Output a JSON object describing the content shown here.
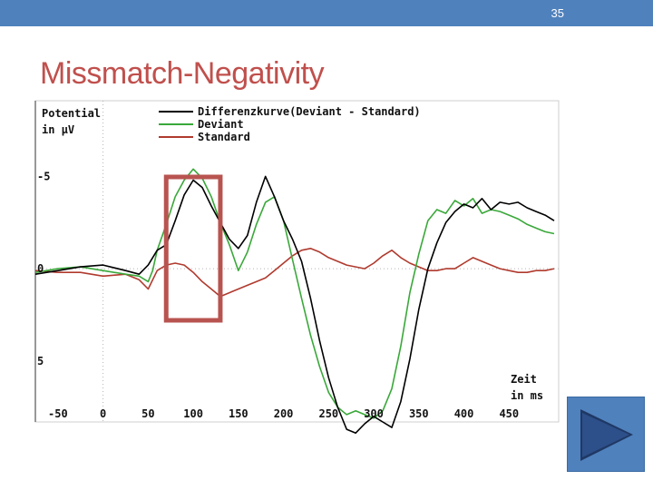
{
  "slide": {
    "number": "35",
    "title": "Missmatch-Negativity"
  },
  "colors": {
    "accent": "#4f81bd",
    "title": "#c0504d",
    "diff": "#000000",
    "deviant": "#3aa83a",
    "standard": "#b03a2e",
    "highlight": "#b85450"
  },
  "nav": {
    "next_icon": "play-arrow-icon"
  },
  "chart_data": {
    "type": "line",
    "ylabel": [
      "Potential",
      "in µV"
    ],
    "xlabel": [
      "Zeit",
      "in ms"
    ],
    "xlim": [
      -75,
      505
    ],
    "ylim": [
      8.3,
      -9.1
    ],
    "xticks": [
      -50,
      0,
      50,
      100,
      150,
      200,
      250,
      300,
      350,
      400,
      450
    ],
    "xtick_labels": [
      "-50",
      "0",
      "50",
      "100",
      "150",
      "200",
      "250",
      "300",
      "350",
      "400",
      "450"
    ],
    "yticks": [
      -5,
      0,
      5
    ],
    "ytick_labels": [
      "-5",
      "0",
      "5"
    ],
    "legend": [
      "Differenzkurve(Deviant - Standard)",
      "Deviant",
      "Standard"
    ],
    "highlight_window_ms": [
      70,
      130
    ],
    "series": [
      {
        "name": "Differenzkurve(Deviant - Standard)",
        "color": "#000000",
        "x": [
          -75,
          -50,
          -25,
          0,
          25,
          40,
          50,
          60,
          70,
          80,
          90,
          100,
          110,
          120,
          130,
          140,
          150,
          160,
          170,
          180,
          190,
          200,
          210,
          220,
          230,
          240,
          250,
          260,
          270,
          280,
          290,
          300,
          310,
          320,
          330,
          340,
          350,
          360,
          370,
          380,
          390,
          400,
          410,
          420,
          430,
          440,
          450,
          460,
          470,
          480,
          490,
          500
        ],
        "y": [
          0.3,
          0.1,
          -0.1,
          -0.2,
          0.1,
          0.3,
          -0.2,
          -1.0,
          -1.3,
          -2.6,
          -4.0,
          -4.8,
          -4.4,
          -3.4,
          -2.5,
          -1.6,
          -1.1,
          -1.8,
          -3.6,
          -5.0,
          -3.9,
          -2.6,
          -1.6,
          -0.4,
          1.6,
          3.9,
          5.9,
          7.5,
          8.7,
          8.9,
          8.4,
          8.0,
          8.3,
          8.6,
          7.2,
          4.9,
          2.2,
          0.0,
          -1.4,
          -2.5,
          -3.1,
          -3.5,
          -3.3,
          -3.8,
          -3.2,
          -3.6,
          -3.5,
          -3.6,
          -3.3,
          -3.1,
          -2.9,
          -2.6
        ]
      },
      {
        "name": "Deviant",
        "color": "#3aa83a",
        "x": [
          -75,
          -50,
          -25,
          0,
          25,
          40,
          50,
          55,
          60,
          70,
          80,
          90,
          100,
          110,
          120,
          130,
          140,
          150,
          160,
          170,
          180,
          190,
          200,
          210,
          220,
          230,
          240,
          250,
          260,
          270,
          280,
          290,
          300,
          310,
          320,
          330,
          340,
          350,
          360,
          370,
          380,
          390,
          400,
          410,
          420,
          430,
          440,
          450,
          460,
          470,
          480,
          490,
          500
        ],
        "y": [
          0.2,
          0.0,
          -0.1,
          0.1,
          0.3,
          0.4,
          0.7,
          0.1,
          -1.0,
          -2.4,
          -3.9,
          -4.8,
          -5.4,
          -4.9,
          -3.9,
          -2.5,
          -1.3,
          0.1,
          -0.9,
          -2.4,
          -3.6,
          -3.9,
          -2.6,
          -0.5,
          1.6,
          3.6,
          5.3,
          6.7,
          7.5,
          7.9,
          7.7,
          7.9,
          8.1,
          7.7,
          6.5,
          4.2,
          1.3,
          -0.8,
          -2.6,
          -3.2,
          -3.0,
          -3.7,
          -3.4,
          -3.8,
          -3.0,
          -3.2,
          -3.1,
          -2.9,
          -2.7,
          -2.4,
          -2.2,
          -2.0,
          -1.9
        ]
      },
      {
        "name": "Standard",
        "color": "#b03a2e",
        "x": [
          -75,
          -50,
          -25,
          0,
          25,
          40,
          50,
          60,
          70,
          80,
          90,
          100,
          110,
          120,
          130,
          140,
          150,
          160,
          170,
          180,
          190,
          200,
          210,
          220,
          230,
          240,
          250,
          260,
          270,
          280,
          290,
          300,
          310,
          320,
          330,
          340,
          350,
          360,
          370,
          380,
          390,
          400,
          410,
          420,
          430,
          440,
          450,
          460,
          470,
          480,
          490,
          500
        ],
        "y": [
          0.1,
          0.2,
          0.2,
          0.4,
          0.3,
          0.6,
          1.1,
          0.1,
          -0.2,
          -0.3,
          -0.2,
          0.2,
          0.7,
          1.1,
          1.5,
          1.3,
          1.1,
          0.9,
          0.7,
          0.5,
          0.1,
          -0.3,
          -0.7,
          -1.0,
          -1.1,
          -0.9,
          -0.6,
          -0.4,
          -0.2,
          -0.1,
          0.0,
          -0.3,
          -0.7,
          -1.0,
          -0.6,
          -0.3,
          -0.1,
          0.1,
          0.1,
          0.0,
          0.0,
          -0.3,
          -0.6,
          -0.4,
          -0.2,
          0.0,
          0.1,
          0.2,
          0.2,
          0.1,
          0.1,
          0.0
        ]
      }
    ]
  }
}
